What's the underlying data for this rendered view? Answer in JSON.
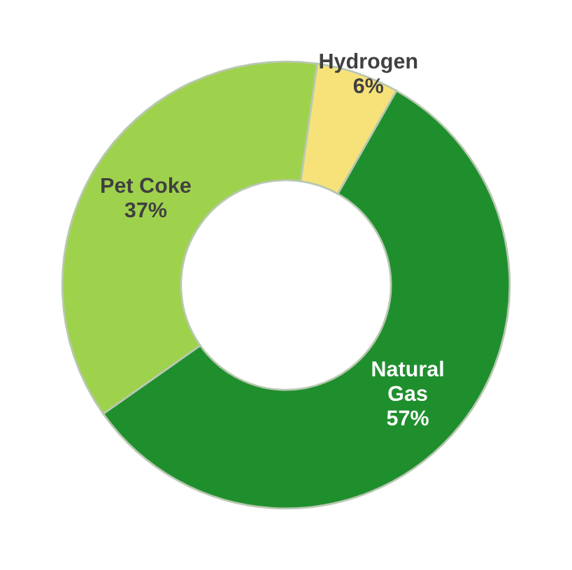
{
  "chart_data": {
    "type": "donut",
    "categories": [
      "Hydrogen",
      "Natural\nGas",
      "Pet Coke"
    ],
    "values": [
      6,
      57,
      37
    ],
    "colors": [
      "#f7e27a",
      "#1f8f2e",
      "#9fd24c"
    ],
    "value_labels": [
      "6%",
      "57%",
      "37%"
    ],
    "legend": false
  }
}
